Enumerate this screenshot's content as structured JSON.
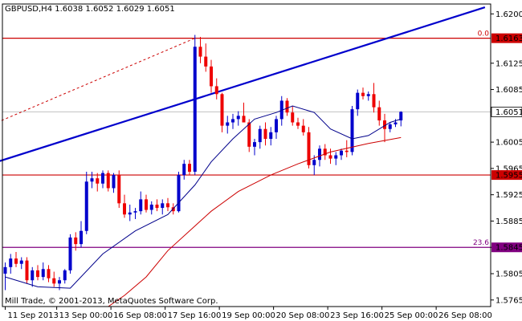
{
  "chart_data": {
    "type": "candlestick",
    "title": "GBPUSD,H4  1.6038 1.6052 1.6029 1.6051",
    "symbol": "GBPUSD",
    "timeframe": "H4",
    "ohlc_last": {
      "open": 1.6038,
      "high": 1.6052,
      "low": 1.6029,
      "close": 1.6051
    },
    "copyright": "Mill Trade, © 2001-2013, MetaQuotes Software Corp.",
    "ylim": [
      1.5755,
      1.6215
    ],
    "y_ticks": [
      "1.6200",
      "1.6125",
      "1.6085",
      "1.6005",
      "1.5965",
      "1.5925",
      "1.5885",
      "1.5845",
      "1.5805",
      "1.5765"
    ],
    "x_ticks": [
      {
        "label": "11 Sep 2013",
        "bar": 0
      },
      {
        "label": "13 Sep 00:00",
        "bar": 9.5
      },
      {
        "label": "16 Sep 08:00",
        "bar": 19.5
      },
      {
        "label": "17 Sep 16:00",
        "bar": 29.5
      },
      {
        "label": "19 Sep 00:00",
        "bar": 39.5
      },
      {
        "label": "20 Sep 08:00",
        "bar": 49.5
      },
      {
        "label": "23 Sep 16:00",
        "bar": 59.5
      },
      {
        "label": "25 Sep 00:00",
        "bar": 69.5
      },
      {
        "label": "26 Sep 08:00",
        "bar": 79.5
      }
    ],
    "candles": [
      [
        1.5805,
        1.5822,
        1.578,
        1.5815
      ],
      [
        1.5815,
        1.5835,
        1.5805,
        1.5828
      ],
      [
        1.5828,
        1.5838,
        1.5815,
        1.582
      ],
      [
        1.582,
        1.583,
        1.5812,
        1.5825
      ],
      [
        1.5825,
        1.583,
        1.579,
        1.5795
      ],
      [
        1.5795,
        1.5815,
        1.5785,
        1.581
      ],
      [
        1.581,
        1.5818,
        1.5795,
        1.58
      ],
      [
        1.58,
        1.5822,
        1.5795,
        1.5812
      ],
      [
        1.5812,
        1.5818,
        1.5792,
        1.5798
      ],
      [
        1.5798,
        1.5808,
        1.5785,
        1.579
      ],
      [
        1.579,
        1.58,
        1.578,
        1.5795
      ],
      [
        1.5795,
        1.5812,
        1.579,
        1.581
      ],
      [
        1.581,
        1.5865,
        1.5805,
        1.586
      ],
      [
        1.586,
        1.5868,
        1.584,
        1.585
      ],
      [
        1.585,
        1.5885,
        1.5845,
        1.587
      ],
      [
        1.587,
        1.596,
        1.5865,
        1.5945
      ],
      [
        1.5945,
        1.596,
        1.5935,
        1.595
      ],
      [
        1.595,
        1.5958,
        1.593,
        1.5942
      ],
      [
        1.5942,
        1.5962,
        1.5935,
        1.5958
      ],
      [
        1.5958,
        1.5962,
        1.593,
        1.5935
      ],
      [
        1.5935,
        1.5958,
        1.5928,
        1.5955
      ],
      [
        1.5955,
        1.5962,
        1.5905,
        1.5912
      ],
      [
        1.5912,
        1.5925,
        1.589,
        1.5895
      ],
      [
        1.5895,
        1.591,
        1.5885,
        1.5898
      ],
      [
        1.5898,
        1.5905,
        1.5888,
        1.59
      ],
      [
        1.59,
        1.593,
        1.5895,
        1.5918
      ],
      [
        1.5918,
        1.5925,
        1.5898,
        1.5902
      ],
      [
        1.5902,
        1.5915,
        1.5895,
        1.591
      ],
      [
        1.591,
        1.5918,
        1.59,
        1.5905
      ],
      [
        1.5905,
        1.5918,
        1.5895,
        1.5912
      ],
      [
        1.5912,
        1.592,
        1.59,
        1.5906
      ],
      [
        1.5906,
        1.5912,
        1.5895,
        1.59
      ],
      [
        1.59,
        1.596,
        1.5898,
        1.5955
      ],
      [
        1.5955,
        1.5978,
        1.5948,
        1.5972
      ],
      [
        1.5972,
        1.5978,
        1.5955,
        1.596
      ],
      [
        1.596,
        1.6168,
        1.5955,
        1.615
      ],
      [
        1.615,
        1.6165,
        1.6125,
        1.6135
      ],
      [
        1.6135,
        1.6155,
        1.6112,
        1.612
      ],
      [
        1.612,
        1.613,
        1.608,
        1.609
      ],
      [
        1.609,
        1.6102,
        1.607,
        1.6078
      ],
      [
        1.6078,
        1.608,
        1.602,
        1.603
      ],
      [
        1.603,
        1.6045,
        1.6018,
        1.6035
      ],
      [
        1.6035,
        1.6048,
        1.6025,
        1.604
      ],
      [
        1.604,
        1.6052,
        1.603,
        1.6045
      ],
      [
        1.6045,
        1.6065,
        1.6035,
        1.6035
      ],
      [
        1.6035,
        1.604,
        1.599,
        1.5998
      ],
      [
        1.5998,
        1.601,
        1.5985,
        1.6005
      ],
      [
        1.6005,
        1.603,
        1.5995,
        1.6025
      ],
      [
        1.6025,
        1.6035,
        1.6,
        1.601
      ],
      [
        1.601,
        1.6028,
        1.6,
        1.602
      ],
      [
        1.602,
        1.6045,
        1.601,
        1.604
      ],
      [
        1.604,
        1.6075,
        1.603,
        1.6068
      ],
      [
        1.6068,
        1.6072,
        1.6045,
        1.605
      ],
      [
        1.605,
        1.606,
        1.603,
        1.6035
      ],
      [
        1.6035,
        1.6042,
        1.6025,
        1.603
      ],
      [
        1.603,
        1.604,
        1.6015,
        1.602
      ],
      [
        1.602,
        1.6028,
        1.5965,
        1.597
      ],
      [
        1.597,
        1.5985,
        1.5955,
        1.5978
      ],
      [
        1.5978,
        1.6,
        1.5968,
        1.5995
      ],
      [
        1.5995,
        1.6002,
        1.5978,
        1.5985
      ],
      [
        1.5985,
        1.5995,
        1.5972,
        1.598
      ],
      [
        1.598,
        1.599,
        1.597,
        1.5985
      ],
      [
        1.5985,
        1.5995,
        1.5978,
        1.5992
      ],
      [
        1.5992,
        1.6008,
        1.5982,
        1.599
      ],
      [
        1.599,
        1.606,
        1.5985,
        1.6055
      ],
      [
        1.6055,
        1.6085,
        1.6045,
        1.608
      ],
      [
        1.608,
        1.6088,
        1.607,
        1.6075
      ],
      [
        1.6075,
        1.6082,
        1.6068,
        1.6078
      ],
      [
        1.6078,
        1.6095,
        1.605,
        1.6058
      ],
      [
        1.6058,
        1.6068,
        1.603,
        1.6038
      ],
      [
        1.6038,
        1.6048,
        1.6005,
        1.6025
      ],
      [
        1.6025,
        1.6035,
        1.602,
        1.6032
      ],
      [
        1.6032,
        1.604,
        1.6028,
        1.6035
      ],
      [
        1.6038,
        1.6052,
        1.6029,
        1.6051
      ]
    ],
    "ma_fast": [
      [
        1.58,
        0
      ],
      [
        1.5785,
        6
      ],
      [
        1.5783,
        12
      ],
      [
        1.5835,
        18
      ],
      [
        1.587,
        24
      ],
      [
        1.5895,
        30
      ],
      [
        1.594,
        35
      ],
      [
        1.5975,
        38
      ],
      [
        1.601,
        42
      ],
      [
        1.604,
        46
      ],
      [
        1.605,
        50
      ],
      [
        1.606,
        53
      ],
      [
        1.605,
        57
      ],
      [
        1.6025,
        60
      ],
      [
        1.601,
        64
      ],
      [
        1.6015,
        67
      ],
      [
        1.6035,
        71
      ],
      [
        1.604,
        73
      ]
    ],
    "ma_slow": [
      [
        1.5755,
        19
      ],
      [
        1.5772,
        22
      ],
      [
        1.58,
        26
      ],
      [
        1.584,
        30
      ],
      [
        1.587,
        34
      ],
      [
        1.59,
        38
      ],
      [
        1.593,
        43
      ],
      [
        1.5955,
        49
      ],
      [
        1.5972,
        54
      ],
      [
        1.599,
        60
      ],
      [
        1.6003,
        67
      ],
      [
        1.6012,
        73
      ]
    ],
    "levels": [
      {
        "price": 1.6163,
        "label": "1.6163",
        "fib": "0.0",
        "color": "#cc0000"
      },
      {
        "price": 1.5955,
        "label": "1.5955",
        "fib": "",
        "color": "#cc0000"
      },
      {
        "price": 1.5845,
        "label": "1.5845",
        "fib": "23.6",
        "color": "#800080"
      }
    ],
    "current_price": {
      "price": 1.6051,
      "label": "1.6051"
    },
    "trendline": {
      "from": [
        -1.5,
        1.5975
      ],
      "to": [
        88.5,
        1.621
      ],
      "color": "#0000cc"
    },
    "fib_dashed": {
      "from": [
        -1.5,
        1.6035
      ],
      "to": [
        35,
        1.6163
      ],
      "color": "#cc0000"
    },
    "colors": {
      "bull": "#0000cc",
      "bear": "#ee0000",
      "ma_fast": "#00008b",
      "ma_slow": "#cc0000",
      "grid": "#000000"
    }
  }
}
